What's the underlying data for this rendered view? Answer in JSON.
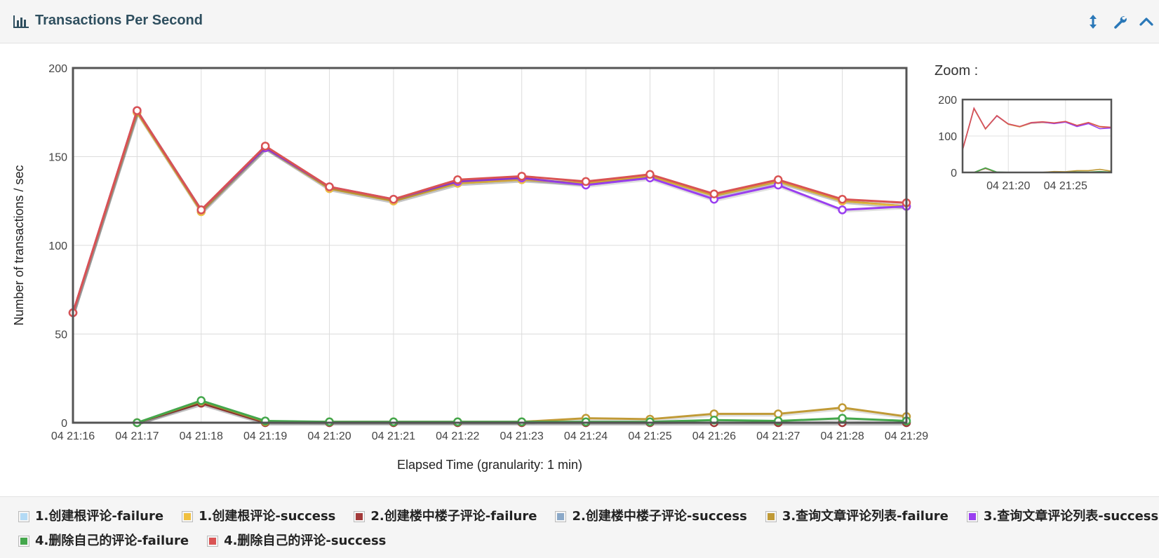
{
  "header": {
    "title": "Transactions Per Second",
    "icons": [
      "bar-chart-icon",
      "expand-vertical-icon",
      "wrench-icon",
      "chevron-up-icon"
    ]
  },
  "zoom": {
    "label": "Zoom :",
    "x_tick_labels": [
      "04 21:20",
      "04 21:25"
    ],
    "y_tick_labels": [
      "0",
      "100",
      "200"
    ]
  },
  "chart_data": {
    "type": "line",
    "title": "",
    "xlabel": "Elapsed Time (granularity: 1 min)",
    "ylabel": "Number of transactions / sec",
    "ylim": [
      0,
      200
    ],
    "yticks": [
      0,
      50,
      100,
      150,
      200
    ],
    "categories": [
      "04 21:16",
      "04 21:17",
      "04 21:18",
      "04 21:19",
      "04 21:20",
      "04 21:21",
      "04 21:22",
      "04 21:23",
      "04 21:24",
      "04 21:25",
      "04 21:26",
      "04 21:27",
      "04 21:28",
      "04 21:29"
    ],
    "grid": true,
    "legend_placement": "bottom",
    "series": [
      {
        "name": "1.创建根评论-failure",
        "color": "#b3daf5",
        "values": [
          null,
          0,
          11,
          0,
          0,
          0,
          0,
          0,
          0,
          0,
          0,
          0,
          0,
          0
        ]
      },
      {
        "name": "1.创建根评论-success",
        "color": "#f0c040",
        "values": [
          62,
          175,
          119,
          155,
          132,
          125,
          135,
          137,
          135,
          139,
          128,
          136,
          125,
          122
        ]
      },
      {
        "name": "2.创建楼中楼子评论-failure",
        "color": "#a33a3a",
        "values": [
          null,
          0,
          11,
          0,
          0,
          0,
          0,
          0,
          0,
          0,
          0,
          0,
          0,
          0
        ]
      },
      {
        "name": "2.创建楼中楼子评论-success",
        "color": "#8aa8c8",
        "values": [
          62,
          175,
          119,
          155,
          132,
          125,
          135,
          137,
          135,
          139,
          128,
          136,
          125,
          122
        ]
      },
      {
        "name": "3.查询文章评论列表-failure",
        "color": "#c09a36",
        "values": [
          null,
          0,
          12,
          0.5,
          0.5,
          0.5,
          0.5,
          0.5,
          2.5,
          2,
          5,
          5,
          8.5,
          3.5
        ]
      },
      {
        "name": "3.查询文章评论列表-success",
        "color": "#9a3ff0",
        "values": [
          62,
          176,
          120,
          155,
          133,
          126,
          136,
          138,
          134,
          138,
          126,
          134,
          120,
          122
        ]
      },
      {
        "name": "4.删除自己的评论-failure",
        "color": "#44a74c",
        "values": [
          null,
          0,
          12.5,
          1,
          0.5,
          0.5,
          0.5,
          0.5,
          0.5,
          0.5,
          1.5,
          1,
          2.5,
          1
        ]
      },
      {
        "name": "4.删除自己的评论-success",
        "color": "#d95353",
        "values": [
          62,
          176,
          120,
          156,
          133,
          126,
          137,
          139,
          136,
          140,
          129,
          137,
          126,
          124
        ]
      }
    ]
  }
}
